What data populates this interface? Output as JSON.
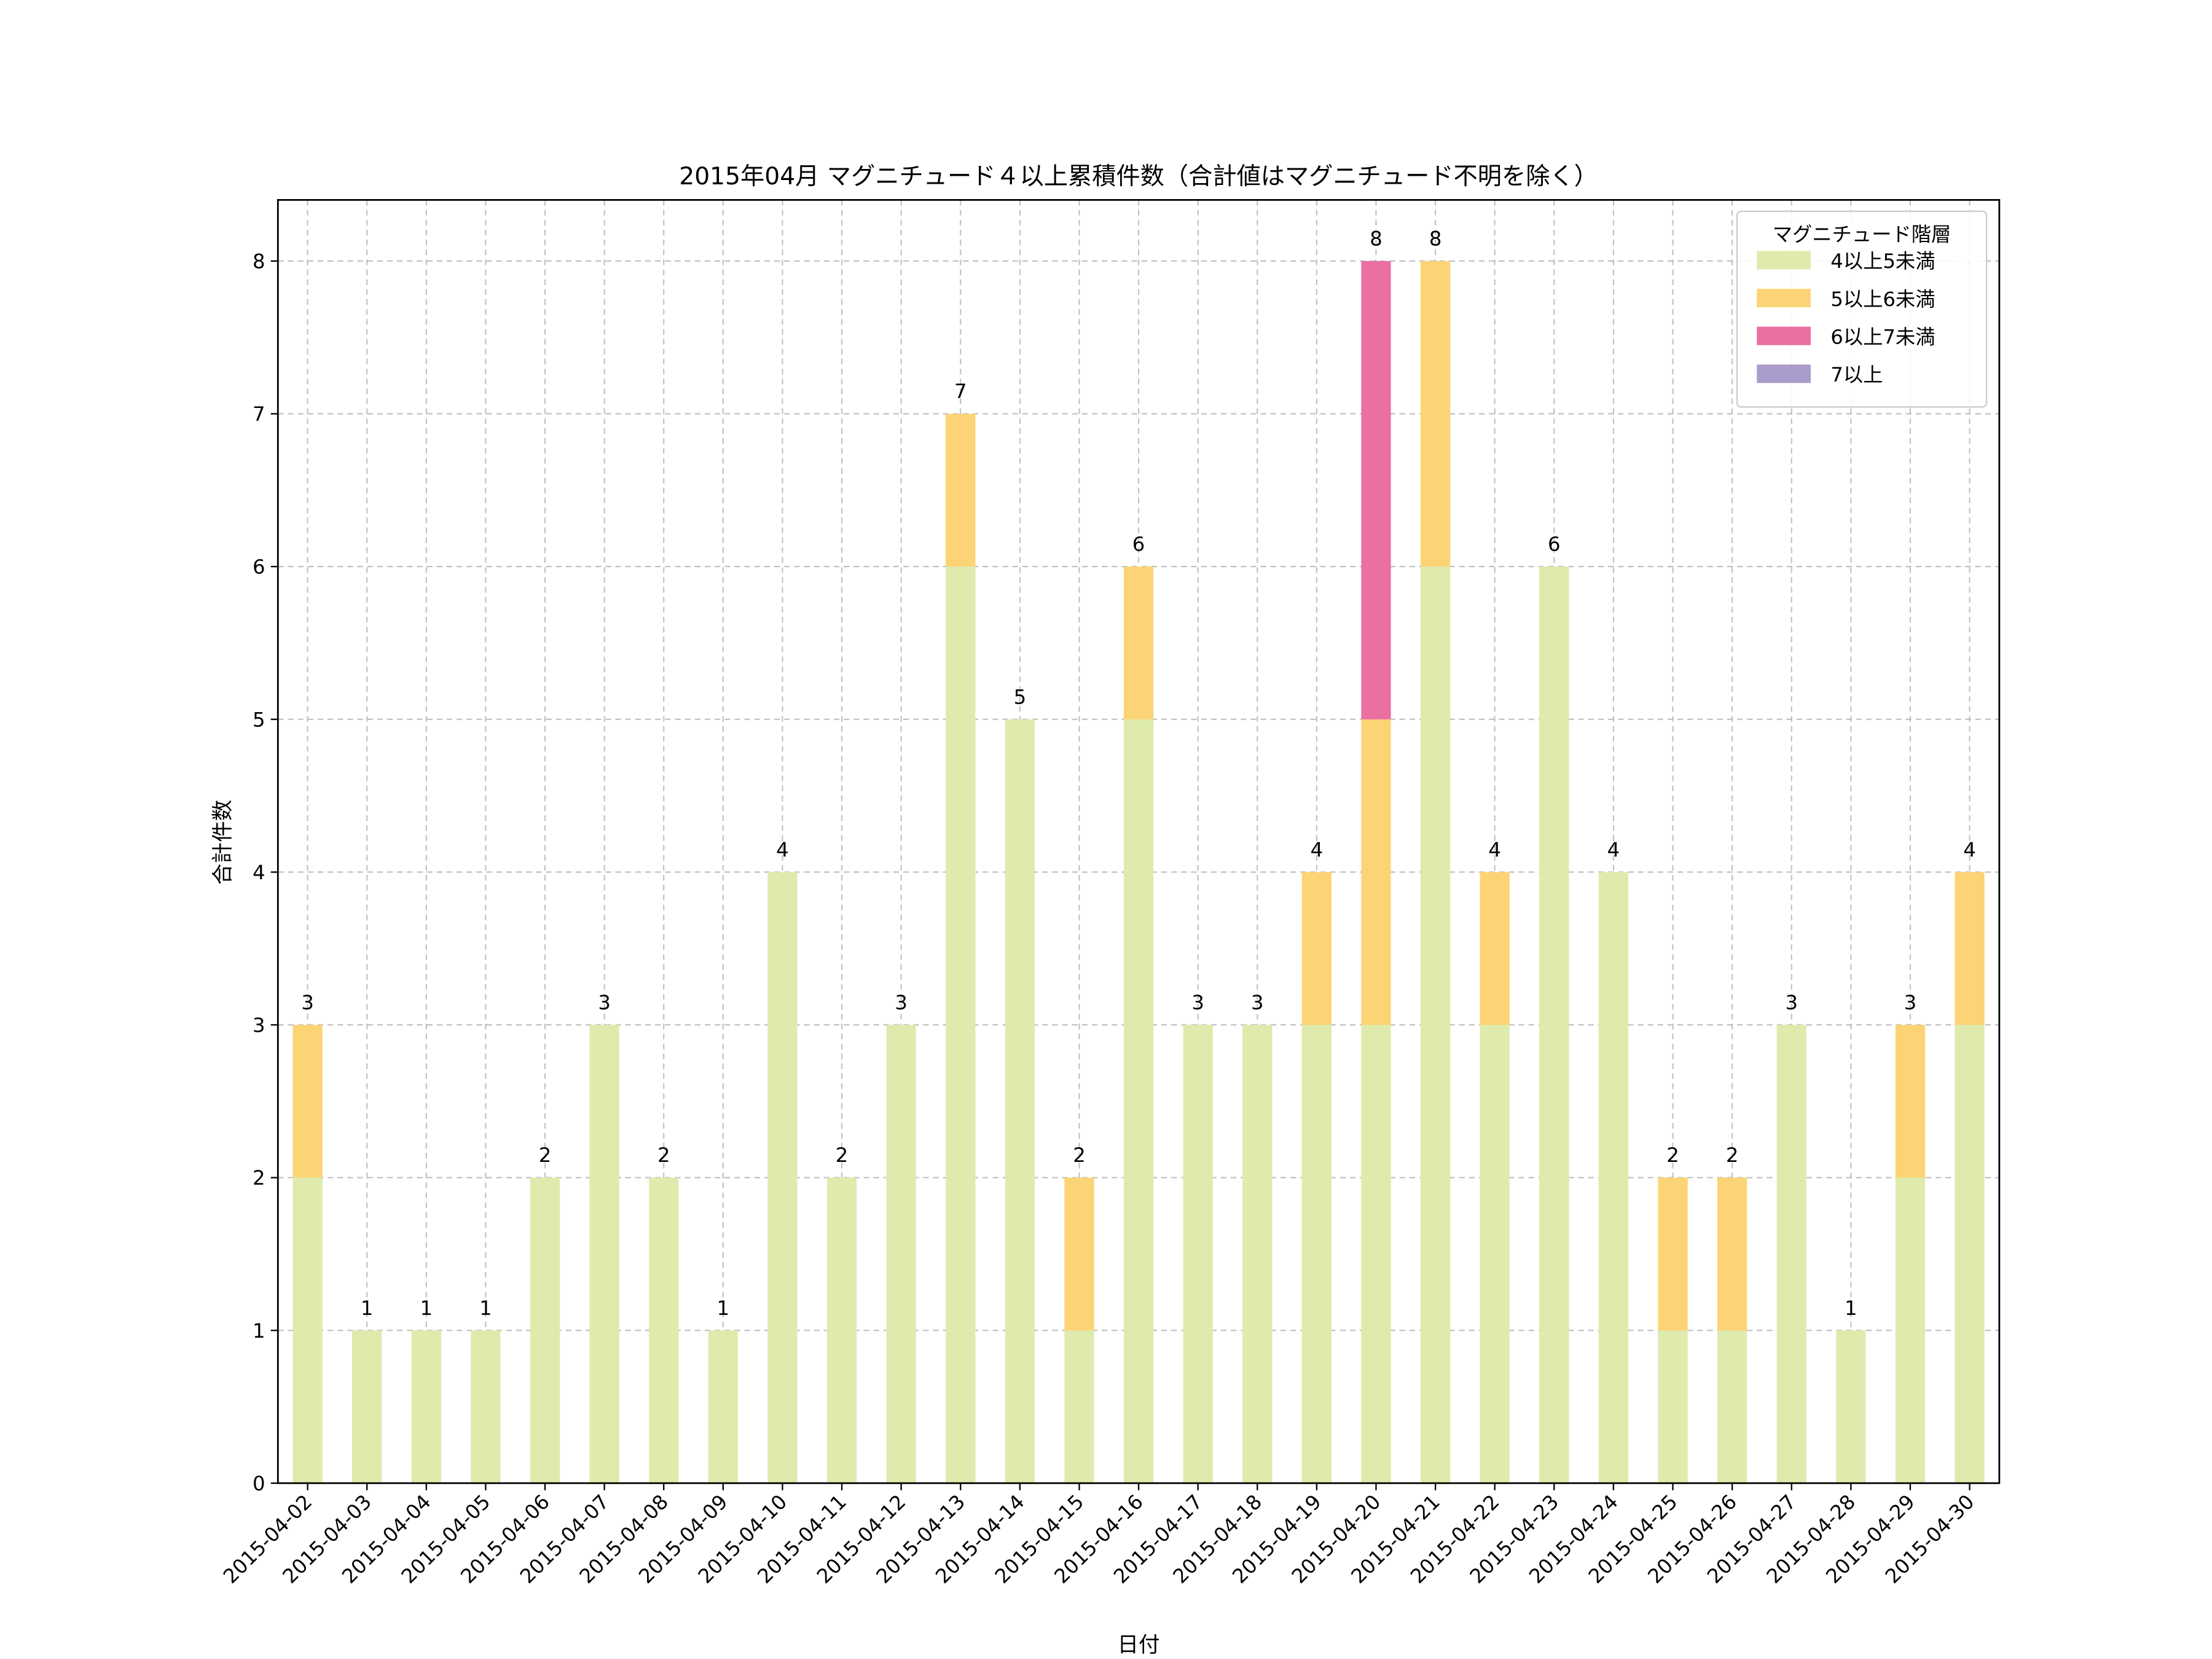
{
  "chart_data": {
    "type": "bar",
    "stacked": true,
    "title": "2015年04月 マグニチュード４以上累積件数（合計値はマグニチュード不明を除く）",
    "xlabel": "日付",
    "ylabel": "合計件数",
    "ylim": [
      0,
      8.4
    ],
    "yticks": [
      0,
      1,
      2,
      3,
      4,
      5,
      6,
      7,
      8
    ],
    "grid": true,
    "legend": {
      "title": "マグニチュード階層",
      "placement": "top-right"
    },
    "categories": [
      "2015-04-02",
      "2015-04-03",
      "2015-04-04",
      "2015-04-05",
      "2015-04-06",
      "2015-04-07",
      "2015-04-08",
      "2015-04-09",
      "2015-04-10",
      "2015-04-11",
      "2015-04-12",
      "2015-04-13",
      "2015-04-14",
      "2015-04-15",
      "2015-04-16",
      "2015-04-17",
      "2015-04-18",
      "2015-04-19",
      "2015-04-20",
      "2015-04-21",
      "2015-04-22",
      "2015-04-23",
      "2015-04-24",
      "2015-04-25",
      "2015-04-26",
      "2015-04-27",
      "2015-04-28",
      "2015-04-29",
      "2015-04-30"
    ],
    "series": [
      {
        "name": "4以上5未満",
        "color": "#dfeaad",
        "values": [
          2,
          1,
          1,
          1,
          2,
          3,
          2,
          1,
          4,
          2,
          3,
          6,
          5,
          1,
          5,
          3,
          3,
          3,
          3,
          6,
          3,
          6,
          4,
          1,
          1,
          3,
          1,
          2,
          3
        ]
      },
      {
        "name": "5以上6未満",
        "color": "#fcd475",
        "values": [
          1,
          0,
          0,
          0,
          0,
          0,
          0,
          0,
          0,
          0,
          0,
          1,
          0,
          1,
          1,
          0,
          0,
          1,
          2,
          2,
          1,
          0,
          0,
          1,
          1,
          0,
          0,
          1,
          1
        ]
      },
      {
        "name": "6以上7未満",
        "color": "#ea6fa2",
        "values": [
          0,
          0,
          0,
          0,
          0,
          0,
          0,
          0,
          0,
          0,
          0,
          0,
          0,
          0,
          0,
          0,
          0,
          0,
          3,
          0,
          0,
          0,
          0,
          0,
          0,
          0,
          0,
          0,
          0
        ]
      },
      {
        "name": "7以上",
        "color": "#a99bcb",
        "values": [
          0,
          0,
          0,
          0,
          0,
          0,
          0,
          0,
          0,
          0,
          0,
          0,
          0,
          0,
          0,
          0,
          0,
          0,
          0,
          0,
          0,
          0,
          0,
          0,
          0,
          0,
          0,
          0,
          0
        ]
      }
    ],
    "totals": [
      3,
      1,
      1,
      1,
      2,
      3,
      2,
      1,
      4,
      2,
      3,
      7,
      5,
      2,
      6,
      3,
      3,
      4,
      8,
      8,
      4,
      6,
      4,
      2,
      2,
      3,
      1,
      3,
      4
    ]
  }
}
